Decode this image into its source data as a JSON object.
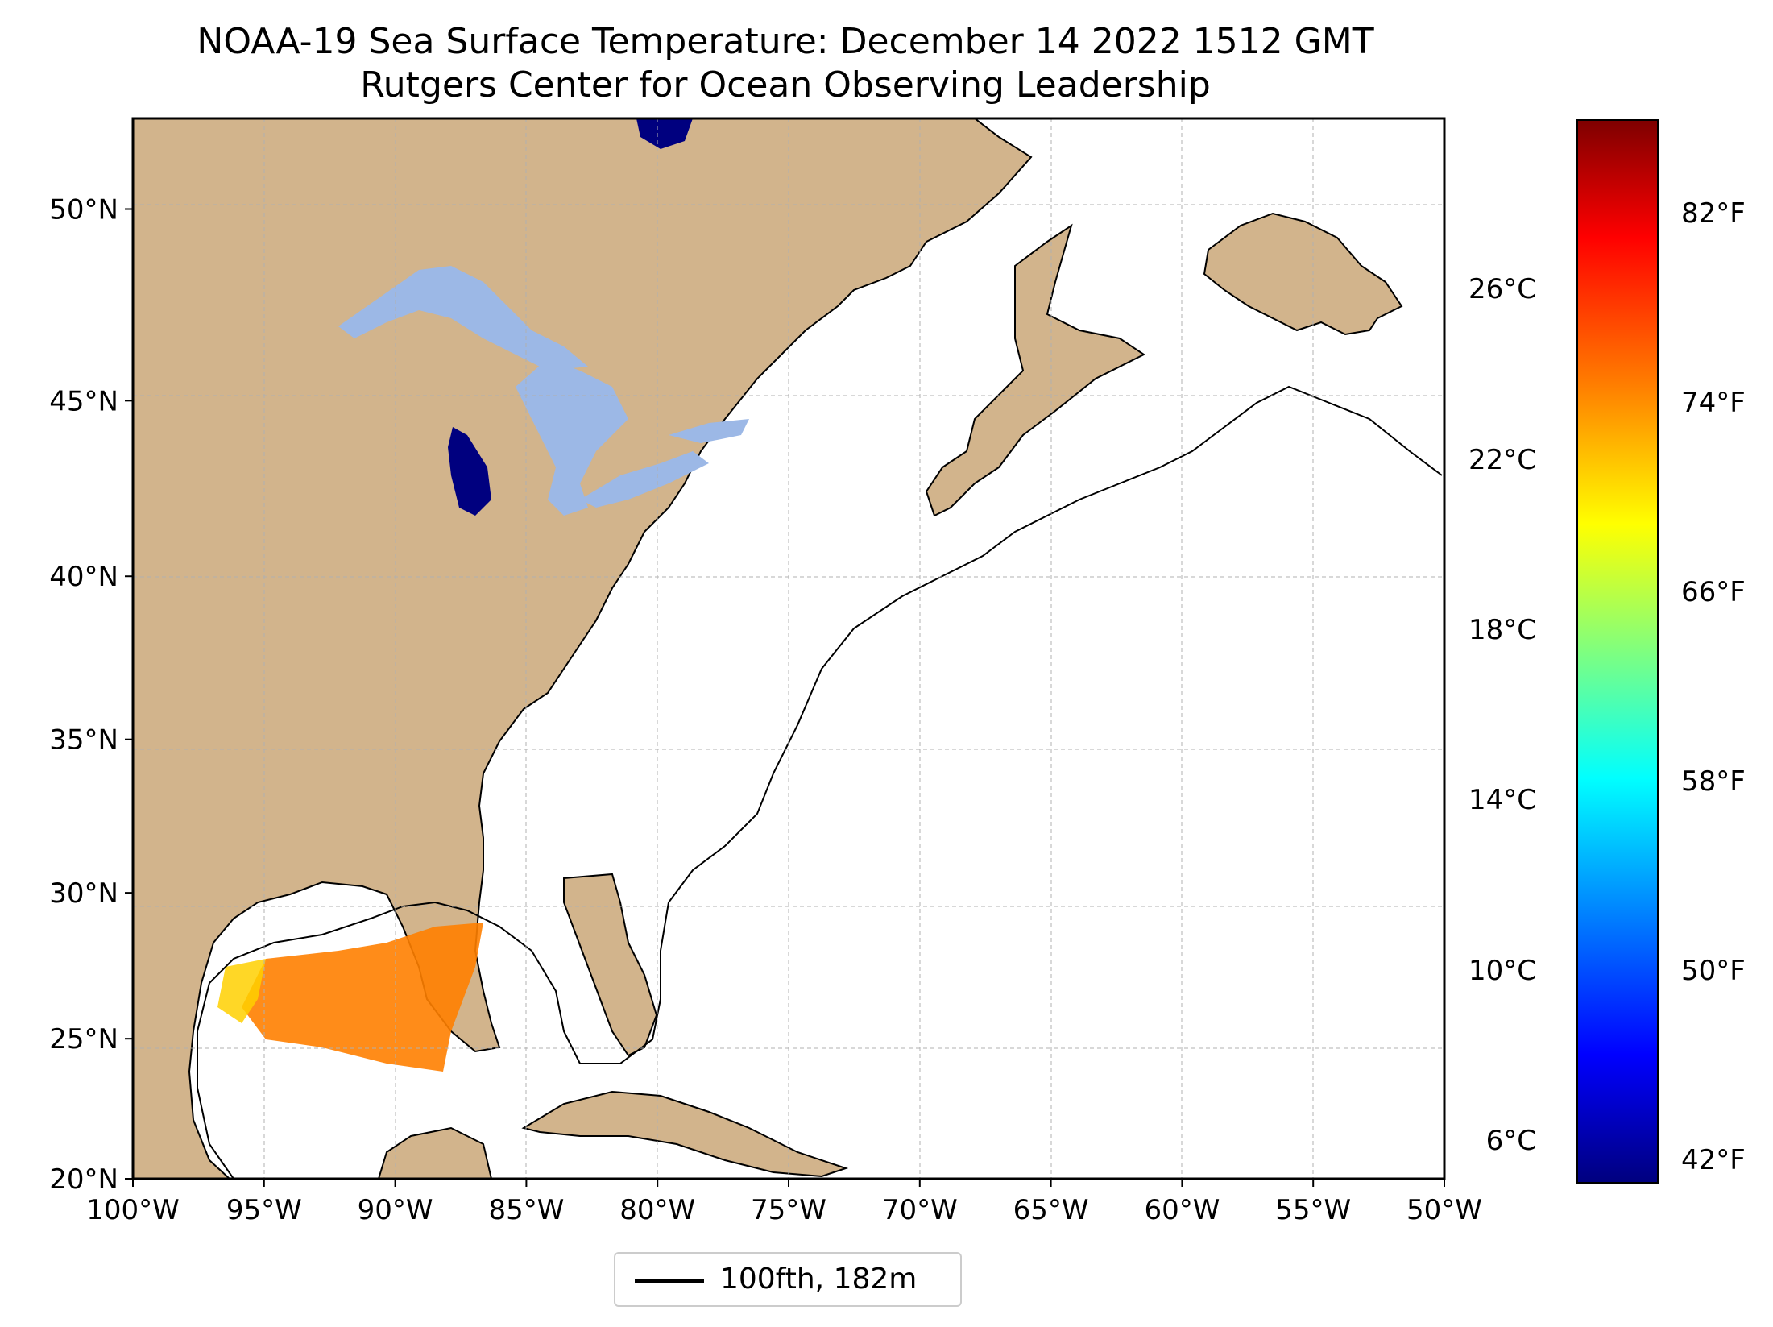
{
  "title": "NOAA-19 Sea Surface Temperature: December 14 2022 1512 GMT",
  "subtitle": "Rutgers Center for Ocean Observing Leadership",
  "map": {
    "lon_min": -100,
    "lon_max": -50,
    "lat_min": 20,
    "lat_max": 52.2,
    "lat_labels": [
      "50°N",
      "45°N",
      "40°N",
      "35°N",
      "30°N",
      "25°N",
      "20°N"
    ],
    "lat_values": [
      50,
      45,
      40,
      35,
      30,
      25,
      20
    ],
    "lon_labels": [
      "100°W",
      "95°W",
      "90°W",
      "85°W",
      "80°W",
      "75°W",
      "70°W",
      "65°W",
      "60°W",
      "55°W",
      "50°W"
    ],
    "lon_values": [
      -100,
      -95,
      -90,
      -85,
      -80,
      -75,
      -70,
      -65,
      -60,
      -55,
      -50
    ],
    "land_color": "#d2b48c",
    "lake_color": "#9cb8e6",
    "ocean_color": "#ffffff",
    "gridline_color": "#b0b0b0"
  },
  "legend": {
    "label": "100fth, 182m"
  },
  "colorbar": {
    "cmap": "jet",
    "celsius_labels": [
      "26°C",
      "22°C",
      "18°C",
      "14°C",
      "10°C",
      "6°C"
    ],
    "celsius_values": [
      26,
      22,
      18,
      14,
      10,
      6
    ],
    "fahrenheit_labels": [
      "82°F",
      "74°F",
      "66°F",
      "58°F",
      "50°F",
      "42°F"
    ],
    "fahrenheit_values": [
      82,
      74,
      66,
      58,
      50,
      42
    ],
    "range_c": [
      5.0,
      30.0
    ]
  }
}
